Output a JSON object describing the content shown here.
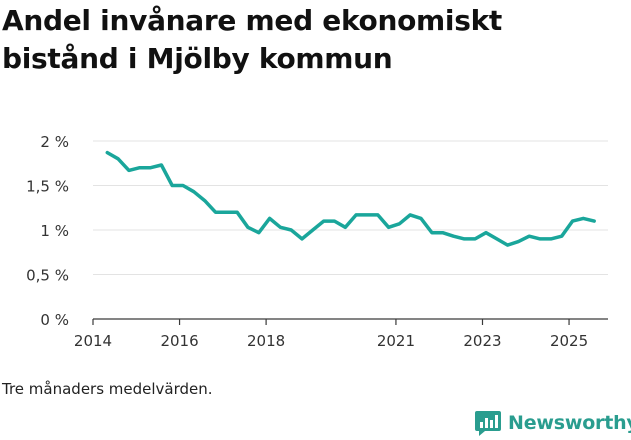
{
  "chart_data": {
    "type": "line",
    "title": "Andel invånare med ekonomiskt bistånd i Mjölby kommun",
    "xlabel": "",
    "ylabel": "",
    "ylim": [
      0,
      2
    ],
    "xlim": [
      2014,
      2025.9
    ],
    "yticks": [
      {
        "value": 0,
        "label": "0 %"
      },
      {
        "value": 0.5,
        "label": "0,5 %"
      },
      {
        "value": 1,
        "label": "1 %"
      },
      {
        "value": 1.5,
        "label": "1,5 %"
      },
      {
        "value": 2,
        "label": "2 %"
      }
    ],
    "xticks": [
      {
        "value": 2014,
        "label": "2014"
      },
      {
        "value": 2016,
        "label": "2016"
      },
      {
        "value": 2018,
        "label": "2018"
      },
      {
        "value": 2021,
        "label": "2021"
      },
      {
        "value": 2023,
        "label": "2023"
      },
      {
        "value": 2025,
        "label": "2025"
      }
    ],
    "grid": true,
    "series": [
      {
        "name": "Andel invånare med ekonomiskt bistånd",
        "color": "#1aa69b",
        "x": [
          2014.33,
          2014.58,
          2014.83,
          2015.08,
          2015.33,
          2015.58,
          2015.83,
          2016.08,
          2016.33,
          2016.58,
          2016.83,
          2017.08,
          2017.33,
          2017.58,
          2017.83,
          2018.08,
          2018.33,
          2018.58,
          2018.83,
          2019.08,
          2019.33,
          2019.58,
          2019.83,
          2020.08,
          2020.33,
          2020.58,
          2020.83,
          2021.08,
          2021.33,
          2021.58,
          2021.83,
          2022.08,
          2022.33,
          2022.58,
          2022.83,
          2023.08,
          2023.33,
          2023.58,
          2023.83,
          2024.08,
          2024.33,
          2024.58,
          2024.83,
          2025.08,
          2025.33,
          2025.58
        ],
        "values": [
          1.87,
          1.8,
          1.67,
          1.7,
          1.7,
          1.73,
          1.5,
          1.5,
          1.43,
          1.33,
          1.2,
          1.2,
          1.2,
          1.03,
          0.97,
          1.13,
          1.03,
          1.0,
          0.9,
          1.0,
          1.1,
          1.1,
          1.03,
          1.17,
          1.17,
          1.17,
          1.03,
          1.07,
          1.17,
          1.13,
          0.97,
          0.97,
          0.93,
          0.9,
          0.9,
          0.97,
          0.9,
          0.83,
          0.87,
          0.93,
          0.9,
          0.9,
          0.93,
          1.1,
          1.13,
          1.1
        ]
      }
    ],
    "note": "Tre månaders medelvärden.",
    "source": "Newsworthy"
  },
  "brand": {
    "name": "Newsworthy",
    "color": "#2a9d8f"
  }
}
